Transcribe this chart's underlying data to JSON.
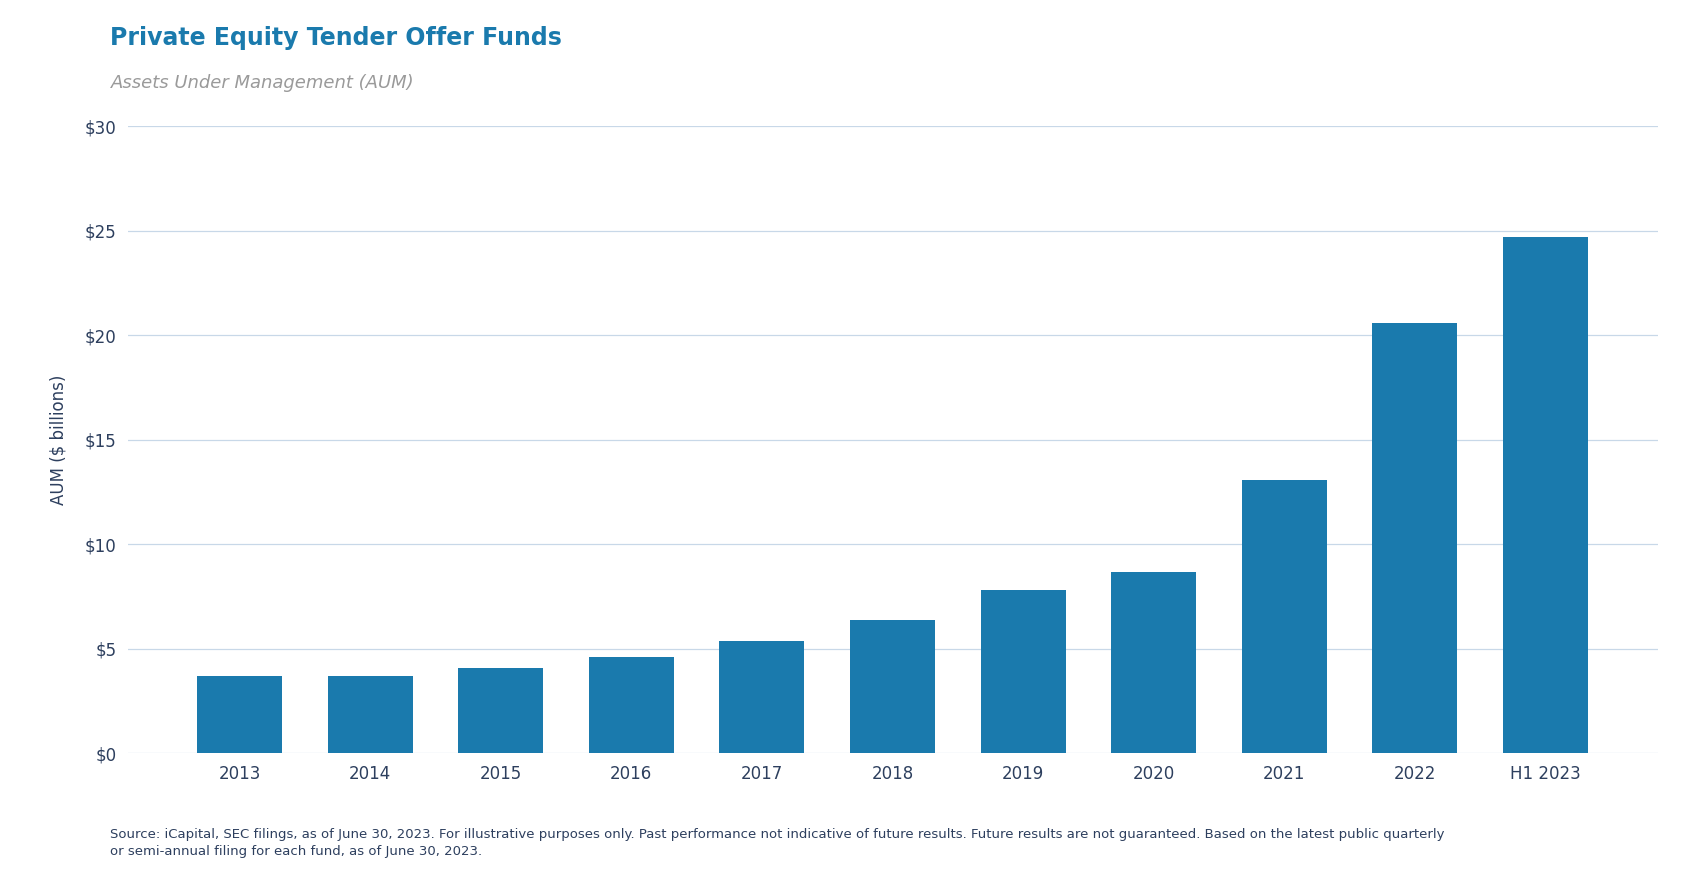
{
  "title": "Private Equity Tender Offer Funds",
  "subtitle": "Assets Under Management (AUM)",
  "ylabel": "AUM ($ billions)",
  "categories": [
    "2013",
    "2014",
    "2015",
    "2016",
    "2017",
    "2018",
    "2019",
    "2020",
    "2021",
    "2022",
    "H1 2023"
  ],
  "values": [
    3.7,
    3.7,
    4.1,
    4.6,
    5.4,
    6.4,
    7.8,
    8.7,
    13.1,
    20.6,
    24.7
  ],
  "bar_color": "#1a7aad",
  "title_color": "#1a7aad",
  "subtitle_color": "#9a9a9a",
  "axis_label_color": "#2d3f5e",
  "tick_color": "#2d3f5e",
  "gridline_color": "#c8d8e8",
  "background_color": "#ffffff",
  "ylim": [
    0,
    30
  ],
  "yticks": [
    0,
    5,
    10,
    15,
    20,
    25,
    30
  ],
  "ytick_labels": [
    "$0",
    "$5",
    "$10",
    "$15",
    "$20",
    "$25",
    "$30"
  ],
  "footnote": "Source: iCapital, SEC filings, as of June 30, 2023. For illustrative purposes only. Past performance not indicative of future results. Future results are not guaranteed. Based on the latest public quarterly\nor semi-annual filing for each fund, as of June 30, 2023.",
  "title_fontsize": 17,
  "subtitle_fontsize": 13,
  "ylabel_fontsize": 12,
  "tick_fontsize": 12,
  "footnote_fontsize": 9.5,
  "bar_width": 0.65
}
